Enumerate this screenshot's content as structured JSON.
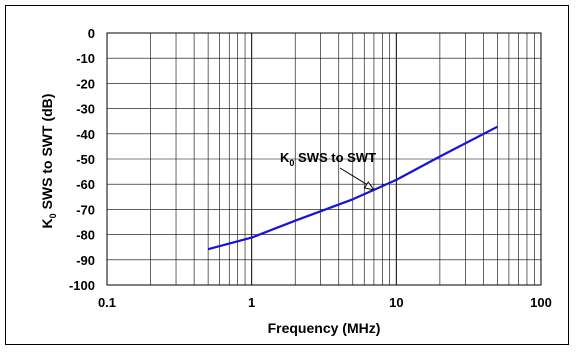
{
  "chart_data": {
    "type": "line",
    "xscale": "log",
    "xlim": [
      0.1,
      100
    ],
    "ylim": [
      -100,
      0
    ],
    "xticks": [
      "0.1",
      "1",
      "10",
      "100"
    ],
    "yticks": [
      "0",
      "-10",
      "-20",
      "-30",
      "-40",
      "-50",
      "-60",
      "-70",
      "-80",
      "-90",
      "-100"
    ],
    "xlabel": "Frequency (MHz)",
    "ylabel": {
      "main": "K",
      "sub": "0",
      "rest": " SWS to SWT (dB)"
    },
    "grid": true,
    "series": [
      {
        "name": {
          "main": "K",
          "sub": "0",
          "rest": " SWS to SWT"
        },
        "color": "#1515d6",
        "points": [
          {
            "x": 0.5,
            "y": -85.8
          },
          {
            "x": 1,
            "y": -81.2
          },
          {
            "x": 2,
            "y": -74.5
          },
          {
            "x": 5,
            "y": -66.0
          },
          {
            "x": 10,
            "y": -58.3
          },
          {
            "x": 20,
            "y": -49.0
          },
          {
            "x": 50,
            "y": -37.2
          }
        ]
      }
    ],
    "annotation": {
      "text": {
        "main": "K",
        "sub": "0",
        "rest": " SWS to SWT"
      },
      "points_to_x": 7
    }
  }
}
